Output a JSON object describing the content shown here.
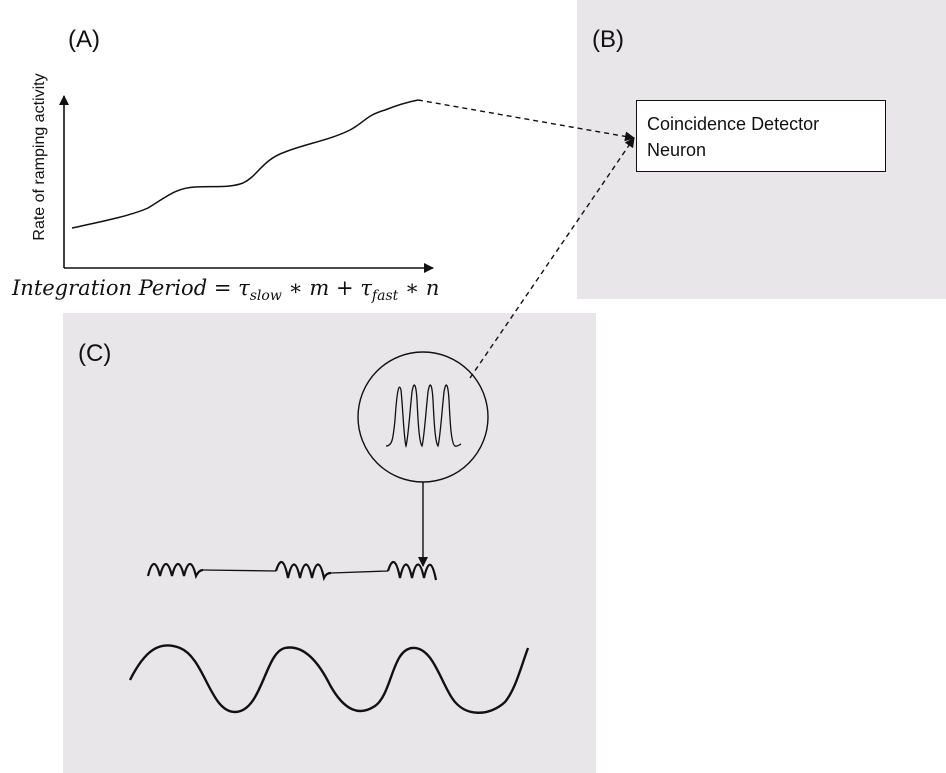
{
  "panels": {
    "a": {
      "label": "(A)"
    },
    "b": {
      "label": "(B)"
    },
    "c": {
      "label": "(C)"
    }
  },
  "graph": {
    "y_axis_label": "Rate of ramping activity",
    "formula": {
      "lhs": "Integration Period",
      "eq": " = ",
      "tau1": "τ",
      "sub1": "slow",
      "mult1": " ∗ m + ",
      "tau2": "τ",
      "sub2": "fast",
      "mult2": " ∗ n"
    }
  },
  "detector": {
    "line1": "Coincidence Detector",
    "line2": "Neuron"
  },
  "colors": {
    "panel_background": "#e8e6e9",
    "ink": "#111111"
  },
  "icons": {
    "spike_burst": "spike-train-icon",
    "theta": "slow-oscillation-icon",
    "gamma": "fast-oscillation-burst-icon"
  }
}
